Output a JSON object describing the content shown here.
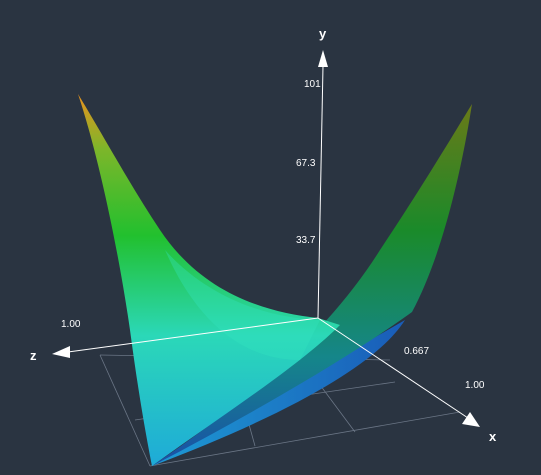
{
  "chart_data": {
    "type": "surface3d",
    "axes": {
      "x": {
        "label": "x",
        "ticks": [
          "0.667",
          "1.00"
        ]
      },
      "y": {
        "label": "y",
        "ticks": [
          "33.7",
          "67.3",
          "101"
        ]
      },
      "z": {
        "label": "z",
        "ticks": [
          "1.00"
        ]
      }
    },
    "grid": true,
    "colormap": [
      "#1a3f9e",
      "#1e8fd0",
      "#2ee0b0",
      "#22c32a",
      "#e8a020"
    ]
  }
}
